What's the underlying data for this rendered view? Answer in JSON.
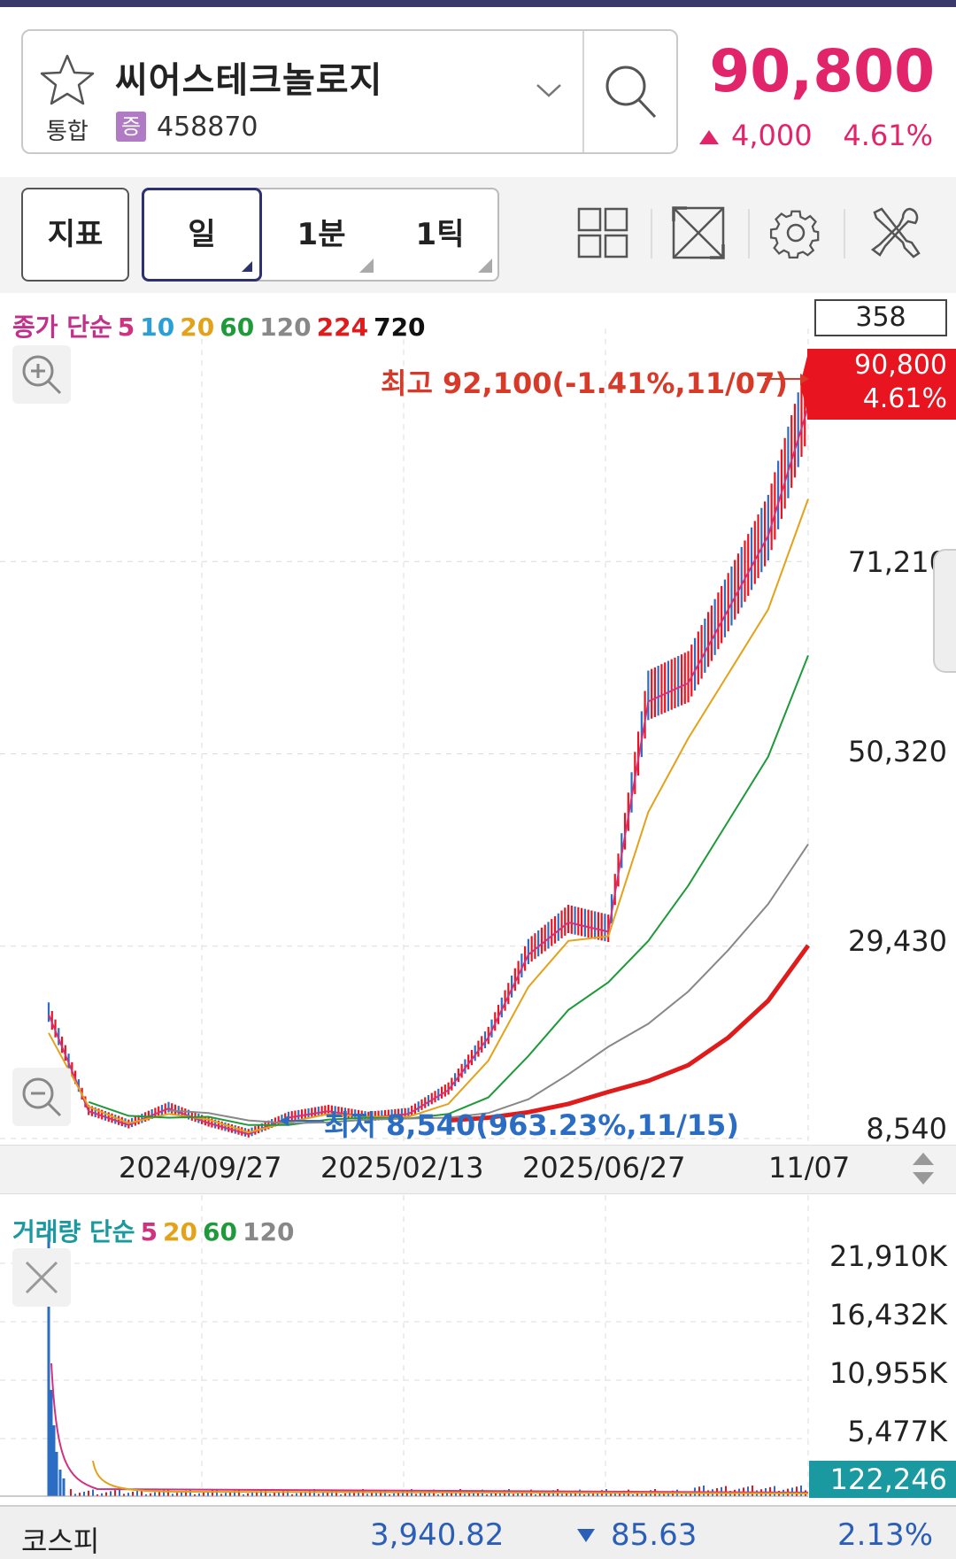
{
  "header": {
    "stock_name": "씨어스테크놀로지",
    "market": "통합",
    "badge": "증",
    "code": "458870",
    "price": "90,800",
    "change": "4,000",
    "change_pct": "4.61%",
    "up_color": "#e2246a"
  },
  "toolbar": {
    "indicator_label": "지표",
    "periods": [
      "일",
      "1분",
      "1틱"
    ],
    "active_period": "일",
    "icons": [
      "grid-layout-icon",
      "fullscreen-icon",
      "gear-icon",
      "tools-icon"
    ]
  },
  "chart": {
    "legend_prefix": "종가 단순",
    "ma_labels": [
      {
        "label": "5",
        "color": "#d1327e"
      },
      {
        "label": "10",
        "color": "#2a9fd6"
      },
      {
        "label": "20",
        "color": "#e3a21a"
      },
      {
        "label": "60",
        "color": "#1f9a3a"
      },
      {
        "label": "120",
        "color": "#888888"
      },
      {
        "label": "224",
        "color": "#e01b1b"
      },
      {
        "label": "720",
        "color": "#111111"
      }
    ],
    "count": "358",
    "price_flag": {
      "price": "90,800",
      "pct": "4.61%"
    },
    "y_labels": [
      "71,210",
      "50,320",
      "29,430",
      "8,540"
    ],
    "high_note": "최고 92,100(-1.41%,11/07)",
    "low_note": "최저 8,540(963.23%,11/15)",
    "x_labels": [
      "2024/09/27",
      "2025/02/13",
      "2025/06/27",
      "11/07"
    ]
  },
  "chart_data": {
    "type": "line",
    "title": "",
    "y_range": [
      8540,
      92100
    ],
    "x_ticks": [
      "2024/09/27",
      "2025/02/13",
      "2025/06/27",
      "11/07"
    ],
    "series": [
      {
        "name": "5",
        "values": [
          22000,
          11500,
          10000,
          11800,
          10200,
          9000,
          10800,
          11500,
          10800,
          11200,
          13800,
          19500,
          28500,
          32000,
          31000,
          56000,
          58000,
          66000,
          74000,
          88000
        ]
      },
      {
        "name": "20",
        "values": [
          20000,
          12000,
          10200,
          11200,
          10600,
          9200,
          10300,
          11200,
          10900,
          10900,
          12300,
          17000,
          25000,
          30000,
          30500,
          44000,
          52000,
          59000,
          66000,
          78000
        ]
      },
      {
        "name": "60",
        "values": [
          null,
          12500,
          11000,
          10800,
          10900,
          10000,
          10000,
          10600,
          10800,
          10700,
          11200,
          13000,
          17500,
          22500,
          25500,
          30000,
          36000,
          43000,
          50000,
          61000
        ]
      },
      {
        "name": "120",
        "values": [
          null,
          null,
          null,
          11600,
          11300,
          10500,
          10200,
          10300,
          10600,
          10700,
          10800,
          11300,
          12800,
          15500,
          18500,
          21000,
          24500,
          29000,
          34000,
          40500
        ]
      },
      {
        "name": "224",
        "values": [
          null,
          null,
          null,
          null,
          null,
          null,
          null,
          null,
          null,
          null,
          10500,
          10800,
          11400,
          12300,
          13600,
          14800,
          16500,
          19500,
          23500,
          29500
        ]
      }
    ]
  },
  "volume": {
    "legend_prefix": "거래량 단순",
    "ma_labels": [
      {
        "label": "5",
        "color": "#d1327e"
      },
      {
        "label": "20",
        "color": "#e3a21a"
      },
      {
        "label": "60",
        "color": "#1f9a3a"
      },
      {
        "label": "120",
        "color": "#888888"
      }
    ],
    "y_labels": [
      "21,910K",
      "16,432K",
      "10,955K",
      "5,477K"
    ],
    "current": "122,246"
  },
  "footer": {
    "index_name": "코스피",
    "index_value": "3,940.82",
    "index_change": "85.63",
    "index_pct": "2.13%"
  }
}
